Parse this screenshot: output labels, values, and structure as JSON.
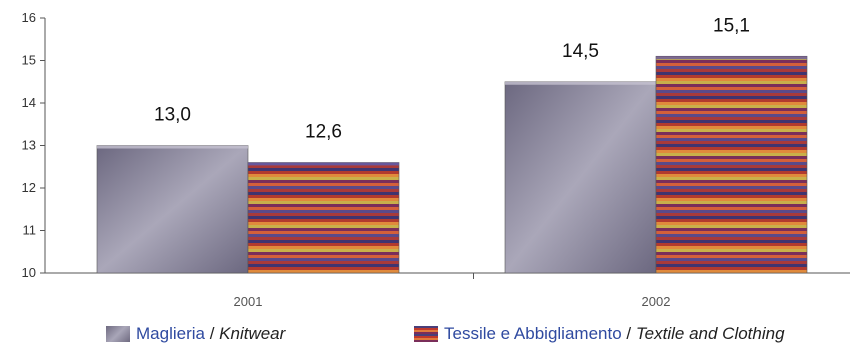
{
  "chart_data": {
    "type": "bar",
    "categories": [
      "2001",
      "2002"
    ],
    "series": [
      {
        "name_it": "Maglieria",
        "name_en": "Knitwear",
        "values": [
          13.0,
          14.5
        ],
        "labels": [
          "13,0",
          "14,5"
        ]
      },
      {
        "name_it": "Tessile e Abbigliamento",
        "name_en": "Textile and Clothing",
        "values": [
          12.6,
          15.1
        ],
        "labels": [
          "12,6",
          "15,1"
        ]
      }
    ],
    "ylim": [
      10,
      16
    ],
    "yticks": [
      "10",
      "11",
      "12",
      "13",
      "14",
      "15",
      "16"
    ],
    "legend_position": "bottom",
    "colors": {
      "knitwear": "#8c889e",
      "textile": "#b8503a"
    }
  },
  "legend": {
    "separator": " / ",
    "items": [
      {
        "it": "Maglieria",
        "en": "Knitwear"
      },
      {
        "it": "Tessile e Abbigliamento",
        "en": "Textile and Clothing"
      }
    ]
  }
}
